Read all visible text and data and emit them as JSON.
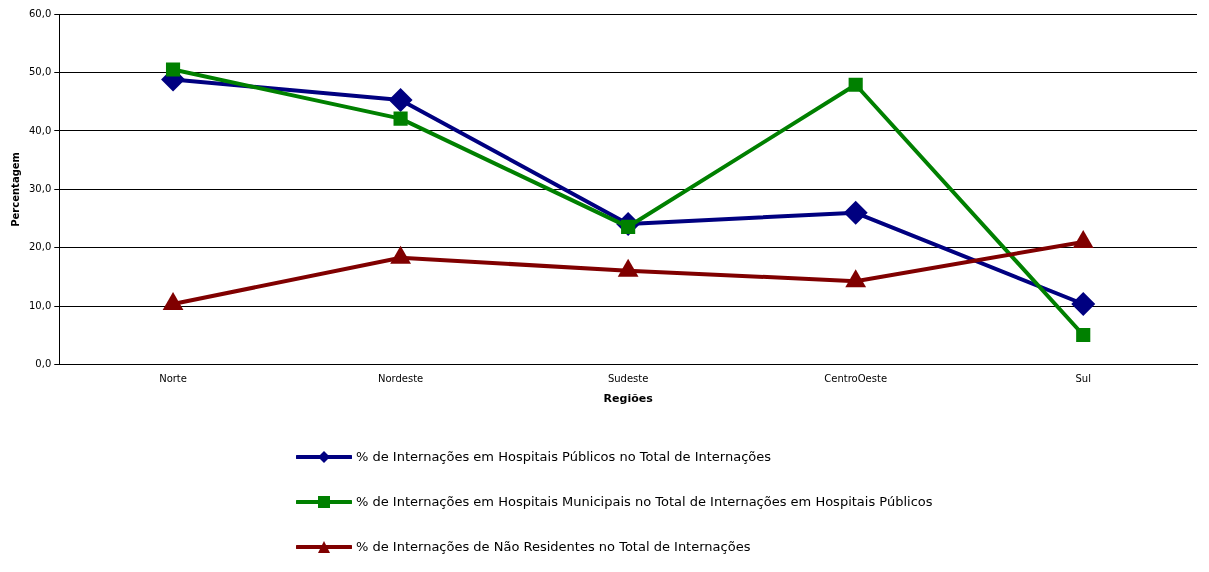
{
  "chart_data": {
    "type": "line",
    "xlabel": "Regiões",
    "ylabel": "Percentagem",
    "categories": [
      "Norte",
      "Nordeste",
      "Sudeste",
      "CentroOeste",
      "Sul"
    ],
    "series": [
      {
        "name": "% de Internações em Hospitais Públicos no Total de Internações",
        "color": "#000080",
        "marker": "diamond",
        "values": [
          48.8,
          45.3,
          24.1,
          26.0,
          10.4
        ]
      },
      {
        "name": "% de Internações em Hospitais Municipais no Total de Internações em Hospitais Públicos",
        "color": "#008000",
        "marker": "square",
        "values": [
          50.5,
          42.1,
          23.6,
          47.9,
          5.1
        ]
      },
      {
        "name": "% de Internações de Não Residentes no Total de Internações",
        "color": "#800000",
        "marker": "triangle",
        "values": [
          10.4,
          18.3,
          16.1,
          14.3,
          21.0
        ]
      }
    ],
    "ylim": [
      0,
      60
    ],
    "yticks": [
      {
        "value": 0,
        "label": "0,0"
      },
      {
        "value": 10,
        "label": "10,0"
      },
      {
        "value": 20,
        "label": "20,0"
      },
      {
        "value": 30,
        "label": "30,0"
      },
      {
        "value": 40,
        "label": "40,0"
      },
      {
        "value": 50,
        "label": "50,0"
      },
      {
        "value": 60,
        "label": "60,0"
      }
    ],
    "grid": "y",
    "legend": "bottom",
    "line_style": "solid"
  }
}
